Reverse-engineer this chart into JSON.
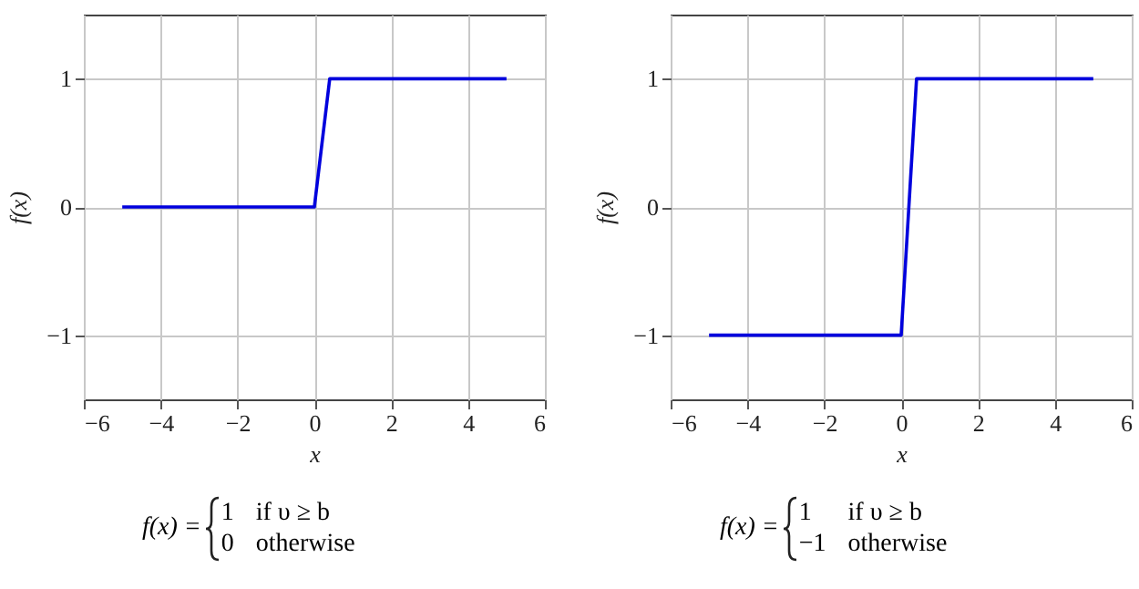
{
  "chart_data": [
    {
      "type": "line",
      "xlabel": "x",
      "ylabel": "f(x)",
      "x": [
        -5,
        0,
        0.4,
        5
      ],
      "series": [
        {
          "color": "#0000dd",
          "values": [
            0,
            0,
            1,
            1
          ]
        }
      ],
      "xlim": [
        -6,
        6
      ],
      "xticks": [
        -6,
        -4,
        -2,
        0,
        2,
        4,
        6
      ],
      "ylim": [
        -1.5,
        1.5
      ],
      "yticks": [
        -1,
        0,
        1
      ],
      "grid": true,
      "marker": "none",
      "line_style": "solid",
      "annotations": [
        "f(x) =",
        "1",
        "if υ ≥ b",
        "0",
        "otherwise"
      ]
    },
    {
      "type": "line",
      "xlabel": "x",
      "ylabel": "f(x)",
      "x": [
        -5,
        0,
        0.4,
        5
      ],
      "series": [
        {
          "color": "#0000dd",
          "values": [
            -1,
            -1,
            1,
            1
          ]
        }
      ],
      "xlim": [
        -6,
        6
      ],
      "xticks": [
        -6,
        -4,
        -2,
        0,
        2,
        4,
        6
      ],
      "ylim": [
        -1.5,
        1.5
      ],
      "yticks": [
        -1,
        0,
        1
      ],
      "grid": true,
      "marker": "none",
      "line_style": "solid",
      "annotations": [
        "f(x) =",
        "1",
        "if υ ≥ b",
        "−1",
        "otherwise"
      ]
    }
  ]
}
